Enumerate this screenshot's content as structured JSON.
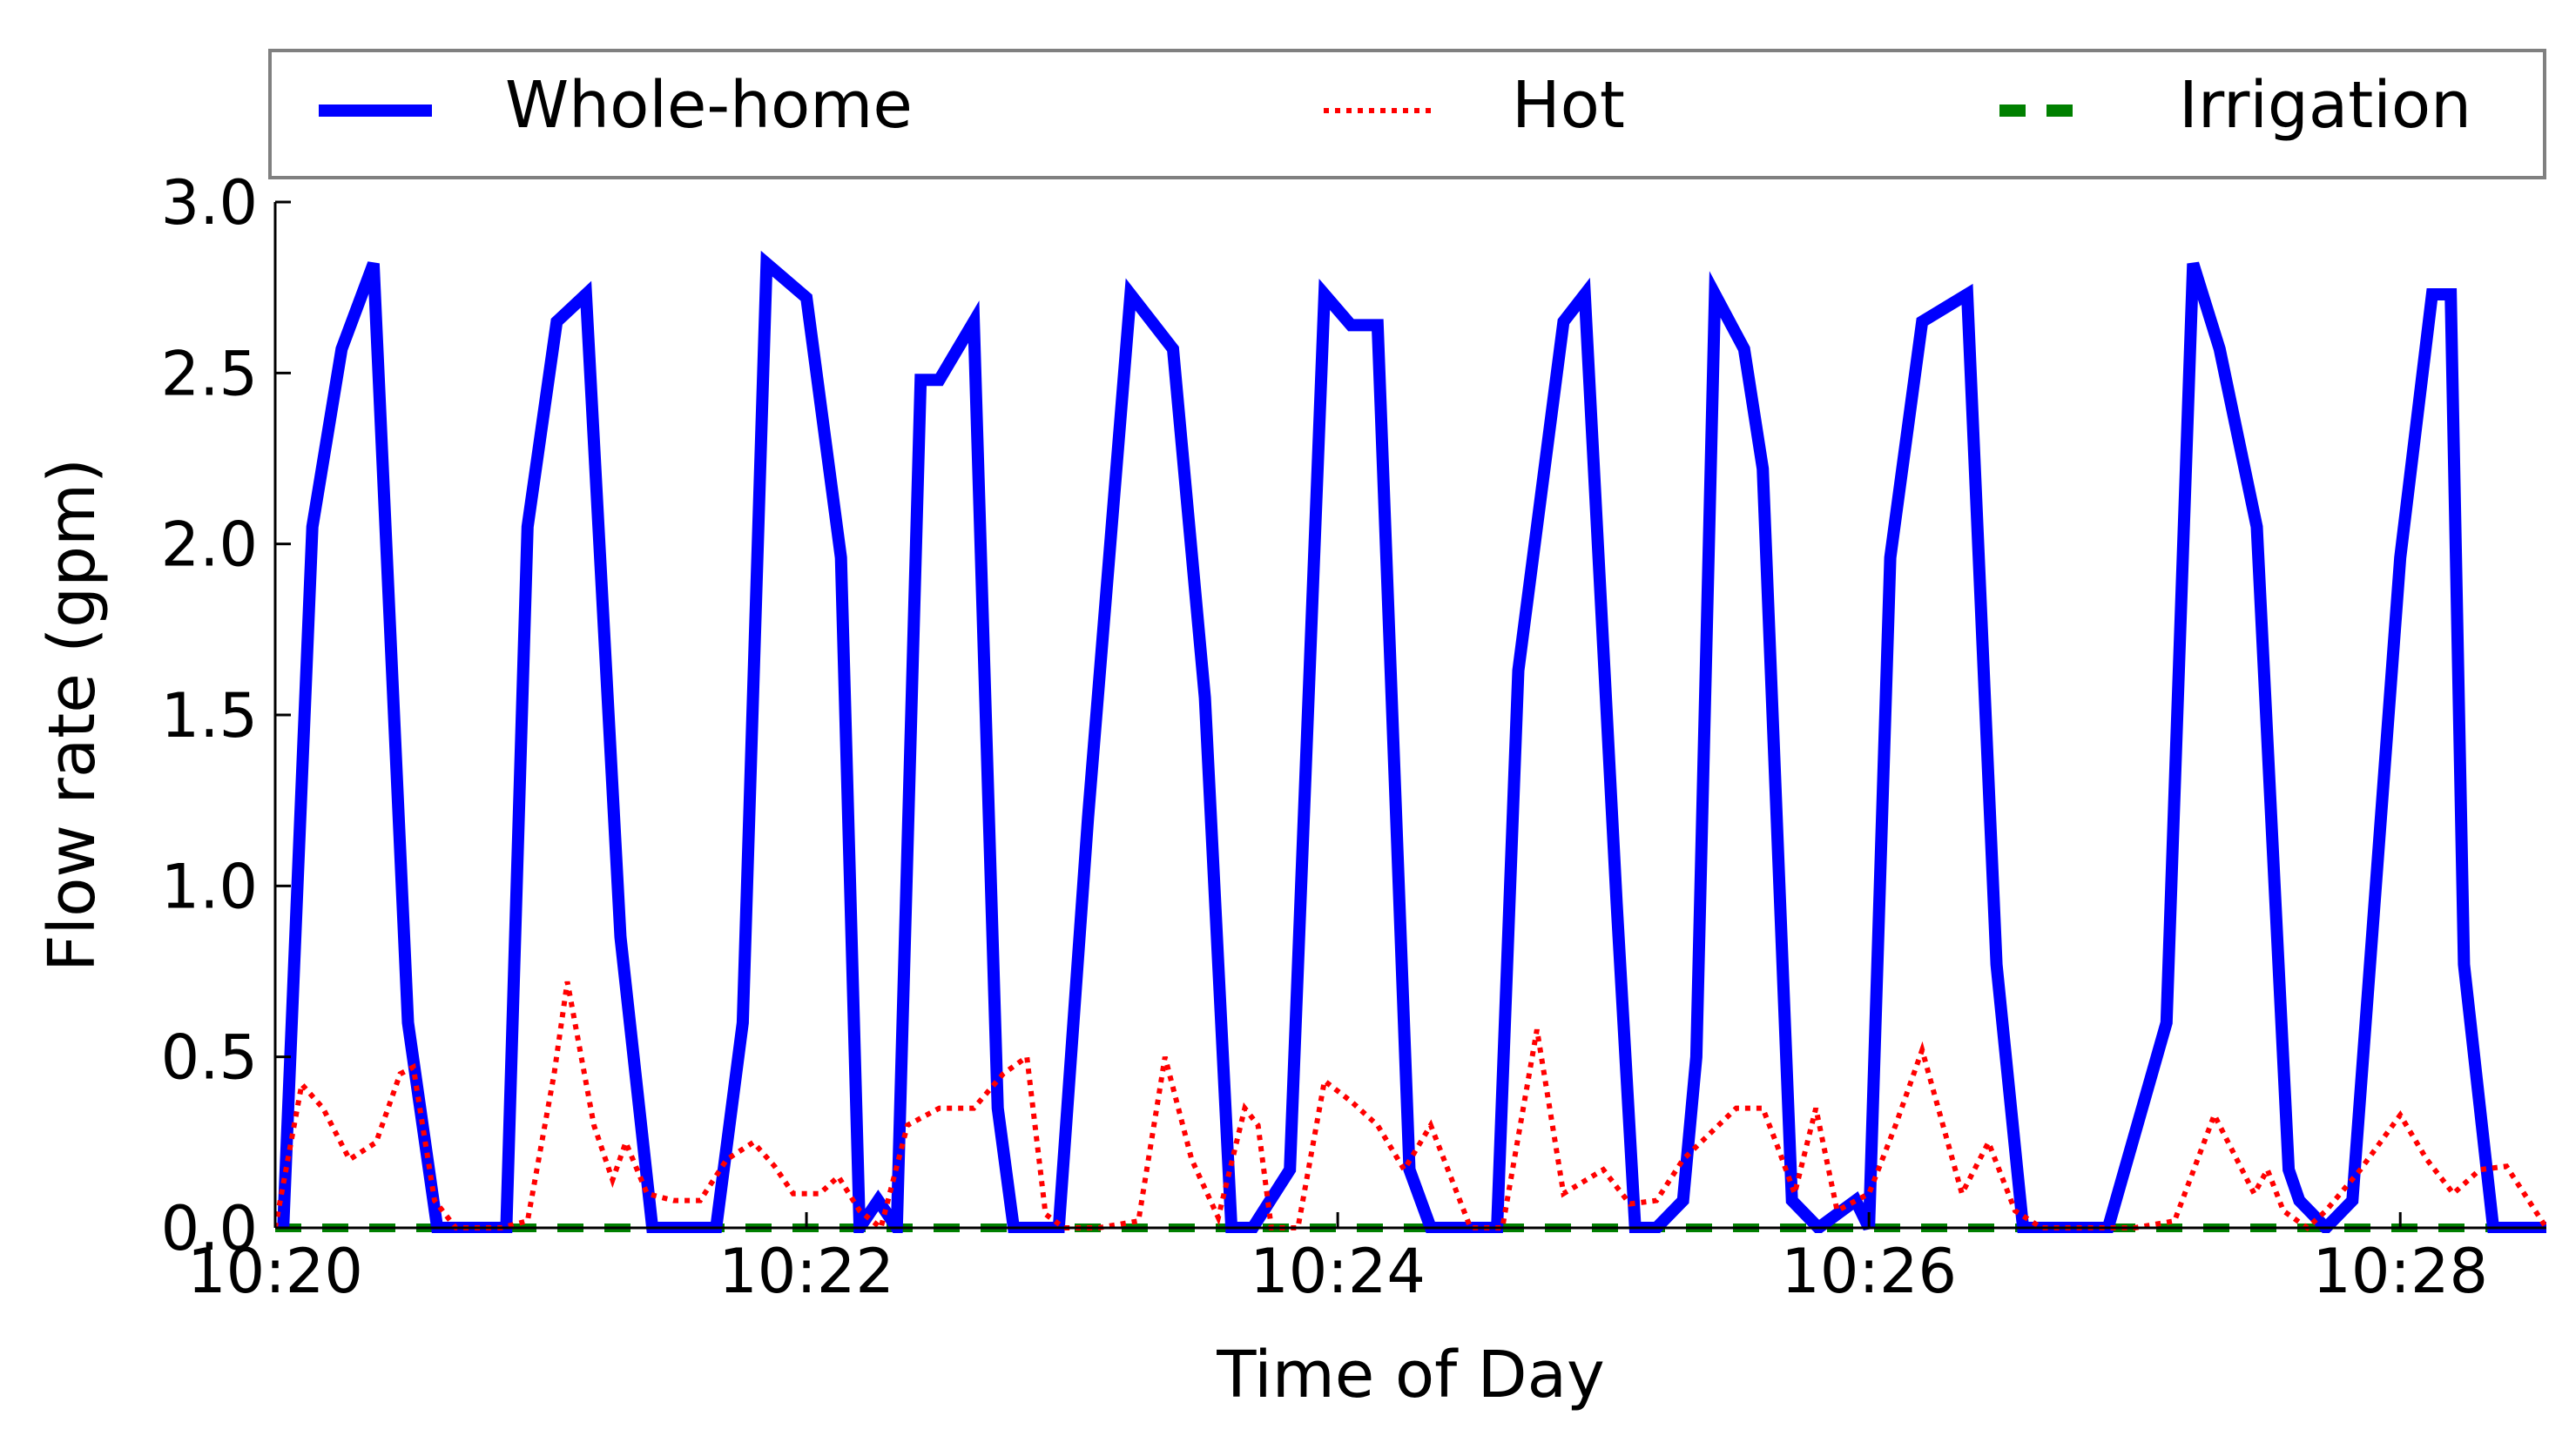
{
  "chart_data": {
    "type": "line",
    "title": "",
    "xlabel": "Time of Day",
    "ylabel": "Flow rate (gpm)",
    "x_units": "minutes after 10:20",
    "xlim": [
      0,
      8.55
    ],
    "ylim": [
      0,
      3.0
    ],
    "grid": false,
    "legend_position": "top",
    "x_ticks": [
      {
        "value": 0,
        "label": "10:20"
      },
      {
        "value": 2,
        "label": "10:22"
      },
      {
        "value": 4,
        "label": "10:24"
      },
      {
        "value": 6,
        "label": "10:26"
      },
      {
        "value": 8,
        "label": "10:28"
      }
    ],
    "y_ticks": [
      {
        "value": 0.0,
        "label": "0.0"
      },
      {
        "value": 0.5,
        "label": "0.5"
      },
      {
        "value": 1.0,
        "label": "1.0"
      },
      {
        "value": 1.5,
        "label": "1.5"
      },
      {
        "value": 2.0,
        "label": "2.0"
      },
      {
        "value": 2.5,
        "label": "2.5"
      },
      {
        "value": 3.0,
        "label": "3.0"
      }
    ],
    "series": [
      {
        "name": "Whole-home",
        "color": "#0000ff",
        "style": "solid",
        "x": [
          0.03,
          0.14,
          0.25,
          0.37,
          0.5,
          0.61,
          0.65,
          0.8,
          0.87,
          0.95,
          1.06,
          1.17,
          1.3,
          1.42,
          1.55,
          1.66,
          1.76,
          1.85,
          2.0,
          2.13,
          2.2,
          2.27,
          2.34,
          2.43,
          2.5,
          2.63,
          2.72,
          2.78,
          2.86,
          2.95,
          3.06,
          3.22,
          3.38,
          3.5,
          3.6,
          3.68,
          3.82,
          3.95,
          4.05,
          4.15,
          4.27,
          4.35,
          4.43,
          4.6,
          4.68,
          4.85,
          4.93,
          5.05,
          5.12,
          5.2,
          5.3,
          5.35,
          5.42,
          5.53,
          5.6,
          5.71,
          5.81,
          5.95,
          6.0,
          6.08,
          6.2,
          6.37,
          6.48,
          6.58,
          6.63,
          6.75,
          6.9,
          7.12,
          7.22,
          7.32,
          7.46,
          7.58,
          7.62,
          7.72,
          7.82,
          8.0,
          8.12,
          8.19,
          8.24,
          8.35,
          8.45,
          8.55
        ],
        "y": [
          0.0,
          2.05,
          2.57,
          2.82,
          0.6,
          0.0,
          0.0,
          0.0,
          0.0,
          2.05,
          2.65,
          2.73,
          0.85,
          0.0,
          0.0,
          0.0,
          0.6,
          2.82,
          2.72,
          1.96,
          0.0,
          0.08,
          0.0,
          2.48,
          2.48,
          2.65,
          0.35,
          0.0,
          0.0,
          0.0,
          1.2,
          2.73,
          2.57,
          1.55,
          0.0,
          0.0,
          0.17,
          2.73,
          2.64,
          2.64,
          0.17,
          0.0,
          0.0,
          0.0,
          1.63,
          2.65,
          2.73,
          0.95,
          0.0,
          0.0,
          0.08,
          0.5,
          2.73,
          2.57,
          2.22,
          0.08,
          0.0,
          0.08,
          0.0,
          1.96,
          2.65,
          2.73,
          0.77,
          0.0,
          0.0,
          0.0,
          0.0,
          0.6,
          2.82,
          2.57,
          2.05,
          0.17,
          0.08,
          0.0,
          0.08,
          1.96,
          2.73,
          2.73,
          0.77,
          0.0,
          0.0,
          0.0
        ]
      },
      {
        "name": "Hot",
        "color": "#ff0000",
        "style": "dotted",
        "x": [
          0.0,
          0.1,
          0.18,
          0.28,
          0.38,
          0.47,
          0.52,
          0.6,
          0.68,
          0.75,
          0.85,
          0.95,
          1.05,
          1.1,
          1.2,
          1.27,
          1.32,
          1.4,
          1.5,
          1.6,
          1.7,
          1.8,
          1.88,
          1.95,
          2.05,
          2.12,
          2.2,
          2.28,
          2.38,
          2.5,
          2.63,
          2.74,
          2.83,
          2.9,
          2.97,
          3.1,
          3.25,
          3.35,
          3.45,
          3.55,
          3.65,
          3.7,
          3.75,
          3.85,
          3.95,
          4.05,
          4.15,
          4.25,
          4.35,
          4.5,
          4.62,
          4.75,
          4.85,
          5.0,
          5.1,
          5.2,
          5.3,
          5.5,
          5.6,
          5.65,
          5.72,
          5.8,
          5.88,
          6.0,
          6.1,
          6.2,
          6.35,
          6.45,
          6.55,
          6.65,
          6.7,
          6.85,
          7.0,
          7.15,
          7.3,
          7.45,
          7.5,
          7.56,
          7.65,
          7.72,
          7.85,
          8.0,
          8.1,
          8.2,
          8.3,
          8.4,
          8.55
        ],
        "y": [
          0.0,
          0.42,
          0.35,
          0.2,
          0.25,
          0.45,
          0.47,
          0.08,
          0.0,
          0.0,
          0.0,
          0.02,
          0.45,
          0.72,
          0.3,
          0.14,
          0.25,
          0.1,
          0.08,
          0.08,
          0.2,
          0.25,
          0.18,
          0.1,
          0.1,
          0.15,
          0.05,
          0.0,
          0.3,
          0.35,
          0.35,
          0.45,
          0.5,
          0.04,
          0.0,
          0.0,
          0.02,
          0.5,
          0.2,
          0.03,
          0.35,
          0.3,
          0.0,
          0.0,
          0.43,
          0.37,
          0.3,
          0.17,
          0.3,
          0.0,
          0.0,
          0.58,
          0.1,
          0.17,
          0.07,
          0.08,
          0.2,
          0.35,
          0.35,
          0.25,
          0.1,
          0.35,
          0.05,
          0.1,
          0.3,
          0.52,
          0.1,
          0.25,
          0.05,
          0.0,
          0.0,
          0.0,
          0.0,
          0.02,
          0.33,
          0.1,
          0.17,
          0.05,
          0.0,
          0.05,
          0.17,
          0.33,
          0.2,
          0.1,
          0.17,
          0.18,
          0.0
        ]
      },
      {
        "name": "Irrigation",
        "color": "#008000",
        "style": "dashed",
        "x": [
          0.0,
          8.55
        ],
        "y": [
          0.0,
          0.0
        ]
      }
    ]
  }
}
